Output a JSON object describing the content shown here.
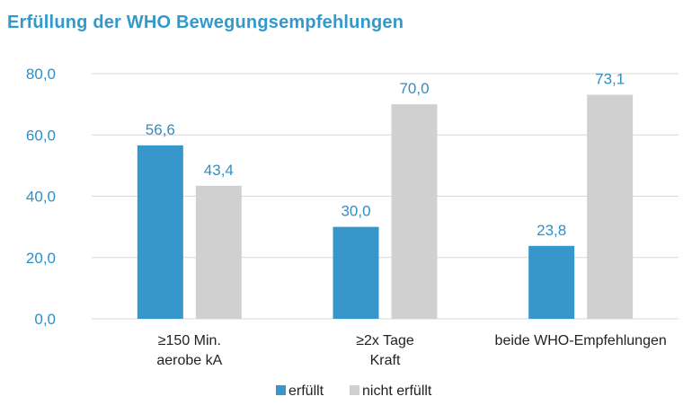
{
  "colors": {
    "title": "#3399cc",
    "series_erfuellt": "#3796cb",
    "series_nicht_erfuellt": "#d0d0d0",
    "axis_text": "#2f8fc6",
    "gridline": "#d9d9d9"
  },
  "chart_data": {
    "type": "bar",
    "title": "Erfüllung der WHO Bewegungsempfehlungen",
    "categories": [
      [
        "≥150 Min.",
        "aerobe kA"
      ],
      [
        "≥2x Tage",
        "Kraft"
      ],
      [
        "beide WHO-Empfehlungen"
      ]
    ],
    "series": [
      {
        "name": "erfüllt",
        "values": [
          56.6,
          30.0,
          23.8
        ],
        "labels": [
          "56,6",
          "30,0",
          "23,8"
        ]
      },
      {
        "name": "nicht erfüllt",
        "values": [
          43.4,
          70.0,
          73.1
        ],
        "labels": [
          "43,4",
          "70,0",
          "73,1"
        ]
      }
    ],
    "yticks": [
      0,
      20,
      40,
      60,
      80
    ],
    "ytick_labels": [
      "0,0",
      "20,0",
      "40,0",
      "60,0",
      "80,0"
    ],
    "ylim": [
      0,
      80
    ],
    "grid": true,
    "legend_position": "bottom-center"
  }
}
